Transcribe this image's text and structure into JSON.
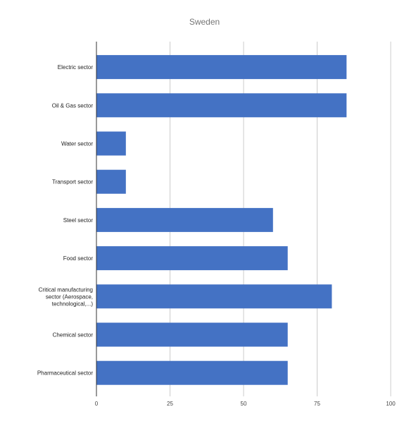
{
  "chart_data": {
    "type": "bar",
    "orientation": "horizontal",
    "title": "Sweden",
    "xlabel": "",
    "ylabel": "",
    "categories": [
      "Electric sector",
      "Oil & Gas sector",
      "Water sector",
      "Transport sector",
      "Steel sector",
      "Food sector",
      [
        "Critical manufacturing",
        "sector (Aerospace,",
        "technological,...)"
      ],
      "Chemical sector",
      "Pharmaceutical sector"
    ],
    "values": [
      85,
      85,
      10,
      10,
      60,
      65,
      80,
      65,
      65
    ],
    "xlim": [
      0,
      100
    ],
    "xticks": [
      0,
      25,
      50,
      75,
      100
    ],
    "grid": true,
    "bar_color": "#4472c4",
    "grid_color": "#cccccc",
    "axis_color": "#333333"
  }
}
